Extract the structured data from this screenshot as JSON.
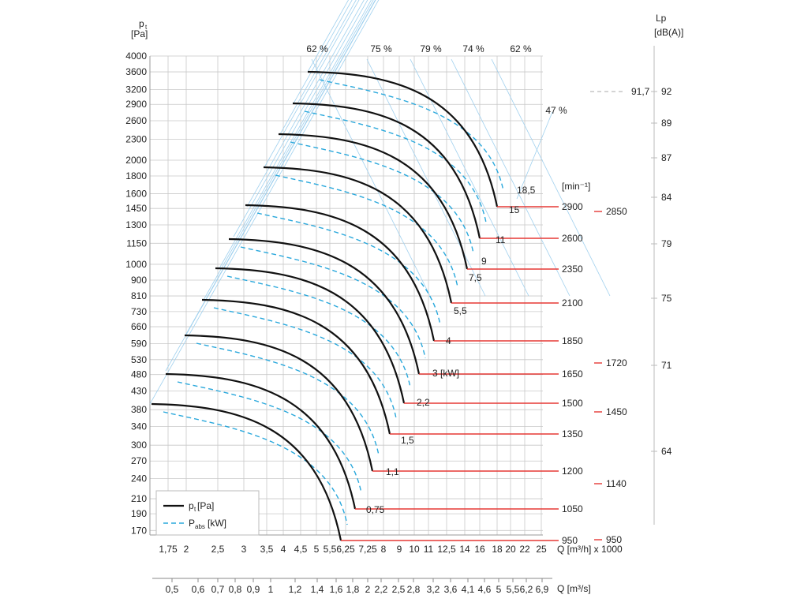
{
  "chart_data": {
    "type": "line",
    "y_axis": {
      "label": "p",
      "label_sub": "t",
      "unit": "[Pa]",
      "ticks": [
        4000,
        3600,
        3200,
        2900,
        2600,
        2300,
        2000,
        1800,
        1600,
        1450,
        1300,
        1150,
        1000,
        900,
        810,
        730,
        660,
        590,
        530,
        480,
        430,
        380,
        340,
        300,
        270,
        240,
        210,
        190,
        170
      ]
    },
    "x_axis_q_m3h": {
      "label": "Q [m³/h] x 1000",
      "ticks": [
        "1,75",
        "2",
        "2,5",
        "3",
        "3,5",
        "4",
        "4,5",
        "5",
        "5,5",
        "6,25",
        "7,25",
        "8",
        "9",
        "10",
        "11",
        "12,5",
        "14",
        "16",
        "18",
        "20",
        "22",
        "25"
      ]
    },
    "x_axis_q_m3s": {
      "label": "Q [m³/s]",
      "ticks": [
        "0,5",
        "0,6",
        "0,7",
        "0,8",
        "0,9",
        "1",
        "1,2",
        "1,4",
        "1,6",
        "1,8",
        "2",
        "2,2",
        "2,5",
        "2,8",
        "3,2",
        "3,6",
        "4,1",
        "4,6",
        "5",
        "5,5",
        "6,2",
        "6,9"
      ]
    },
    "efficiency_labels": [
      "62 %",
      "75 %",
      "79 %",
      "74 %",
      "62 %",
      "47 %"
    ],
    "speed_unit": "[min⁻¹]",
    "speed_left": [
      "2900",
      "2600",
      "2350",
      "2100",
      "1850",
      "1650",
      "1500",
      "1350",
      "1200",
      "1050",
      "950"
    ],
    "speed_right": [
      "2850",
      "1720",
      "1450",
      "1140",
      "950"
    ],
    "power_labels": [
      "18,5",
      "15",
      "11",
      "9",
      "7,5",
      "5,5",
      "4",
      "3 [kW]",
      "2,2",
      "1,5",
      "1,1",
      "0,75"
    ],
    "lp_axis": {
      "label": "Lp",
      "unit": "[dB(A)]",
      "ticks": [
        "92",
        "89",
        "87",
        "84",
        "79",
        "75",
        "71",
        "64"
      ],
      "marker": "91,7"
    },
    "legend": {
      "pt": "p",
      "pt_sub": "t",
      "pt_unit": " [Pa]",
      "pabs": "P",
      "pabs_sub": "abs",
      "pabs_unit": " [kW]"
    },
    "series": [
      {
        "name": "2900",
        "pt_max_pa": 3600
      },
      {
        "name": "2600",
        "pt_max_pa": 2900
      },
      {
        "name": "2350",
        "pt_max_pa": 2350
      },
      {
        "name": "2100",
        "pt_max_pa": 1880
      },
      {
        "name": "1850",
        "pt_max_pa": 1460
      },
      {
        "name": "1650",
        "pt_max_pa": 1160
      },
      {
        "name": "1500",
        "pt_max_pa": 960
      },
      {
        "name": "1350",
        "pt_max_pa": 780
      },
      {
        "name": "1200",
        "pt_max_pa": 615
      },
      {
        "name": "1050",
        "pt_max_pa": 470
      },
      {
        "name": "950",
        "pt_max_pa": 385
      }
    ],
    "grid": true,
    "legend_position": "bottom-left"
  }
}
